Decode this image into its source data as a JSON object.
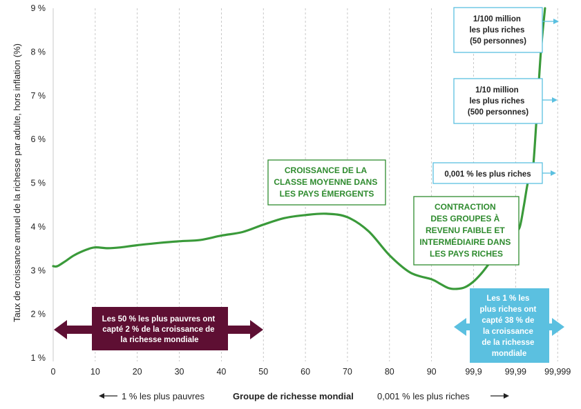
{
  "colors": {
    "line": "#3a9a3a",
    "green_box": "#2e8b2e",
    "blue": "#5bc0e0",
    "maroon": "#5e0f33",
    "grid": "#bbbbbb"
  },
  "chart_data": {
    "type": "line",
    "ylabel": "Taux de croissance annuel de la richesse par adulte, hors inflation (%)",
    "xlabel": "Groupe de richesse mondial",
    "x_ticks": [
      "0",
      "10",
      "20",
      "30",
      "40",
      "50",
      "60",
      "70",
      "80",
      "90",
      "99,9",
      "99,99",
      "99,999"
    ],
    "y_ticks": [
      "1 %",
      "2 %",
      "3 %",
      "4 %",
      "5 %",
      "6 %",
      "7 %",
      "8 %",
      "9 %"
    ],
    "ylim": [
      1,
      9
    ],
    "grid": "vertical dashed",
    "series": [
      {
        "values": [
          [
            0,
            3.1
          ],
          [
            1,
            3.1
          ],
          [
            3,
            3.22
          ],
          [
            5,
            3.35
          ],
          [
            8,
            3.48
          ],
          [
            10,
            3.53
          ],
          [
            13,
            3.51
          ],
          [
            16,
            3.53
          ],
          [
            20,
            3.58
          ],
          [
            25,
            3.63
          ],
          [
            30,
            3.67
          ],
          [
            35,
            3.7
          ],
          [
            40,
            3.8
          ],
          [
            45,
            3.88
          ],
          [
            50,
            4.05
          ],
          [
            55,
            4.2
          ],
          [
            60,
            4.27
          ],
          [
            65,
            4.3
          ],
          [
            70,
            4.22
          ],
          [
            75,
            3.9
          ],
          [
            80,
            3.35
          ],
          [
            85,
            2.95
          ],
          [
            90,
            2.8
          ],
          [
            92,
            2.7
          ],
          [
            94,
            2.6
          ],
          [
            96,
            2.58
          ],
          [
            98,
            2.62
          ],
          [
            100,
            2.75
          ],
          [
            102,
            2.95
          ],
          [
            104,
            3.2
          ],
          [
            106,
            3.45
          ],
          [
            108,
            3.7
          ],
          [
            110,
            3.9
          ],
          [
            111,
            4.0
          ],
          [
            112,
            4.5
          ],
          [
            113,
            5.05
          ],
          [
            114,
            5.2
          ],
          [
            115,
            6.5
          ],
          [
            116,
            8.0
          ],
          [
            117,
            9.0
          ]
        ]
      }
    ],
    "annotations": {
      "green": [
        [
          "CROISSANCE DE LA",
          "CLASSE MOYENNE DANS",
          "LES PAYS ÉMERGENTS"
        ],
        [
          "CONTRACTION",
          "DES GROUPES À",
          "REVENU FAIBLE ET",
          "INTERMÉDIAIRE DANS",
          "LES PAYS RICHES"
        ]
      ],
      "blue_outline": [
        [
          "1/100 million",
          "les plus riches",
          "(50 personnes)"
        ],
        [
          "1/10 million",
          "les plus riches",
          "(500 personnes)"
        ],
        [
          "0,001 % les plus riches"
        ]
      ],
      "maroon_band": [
        "Les 50 % les plus pauvres ont",
        "capté 2 % de la croissance de",
        "la richesse mondiale"
      ],
      "blue_band": [
        "Les 1 % les",
        "plus riches ont",
        "capté 38 % de",
        "la croissance",
        "de la richesse",
        "mondiale"
      ]
    },
    "footer": {
      "left": "1 % les plus pauvres",
      "center": "Groupe de richesse mondial",
      "right": "0,001 % les plus riches"
    }
  }
}
